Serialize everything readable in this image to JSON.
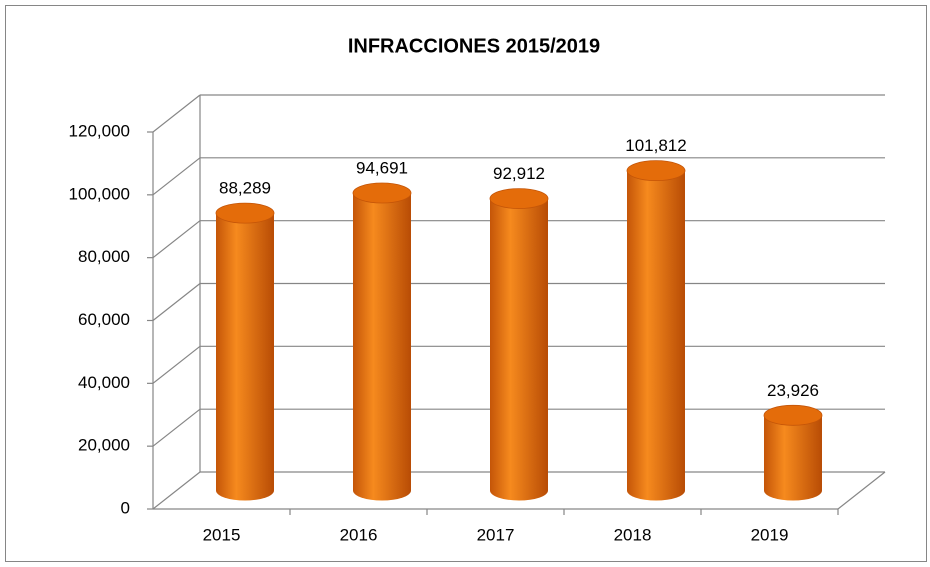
{
  "chart_data": {
    "type": "bar",
    "title": "INFRACCIONES 2015/2019",
    "categories": [
      "2015",
      "2016",
      "2017",
      "2018",
      "2019"
    ],
    "values": [
      88289,
      94691,
      92912,
      101812,
      23926
    ],
    "value_labels": [
      "88,289",
      "94,691",
      "92,912",
      "101,812",
      "23,926"
    ],
    "color": "#e46c0a",
    "ylim": [
      0,
      120000
    ],
    "yticks": [
      0,
      {
        "value": 20000,
        "label": "20,000"
      },
      {
        "value": 40000,
        "label": "40,000"
      },
      {
        "value": 60000,
        "label": "60,000"
      },
      {
        "value": 80000,
        "label": "80,000"
      },
      {
        "value": 100000,
        "label": "100,000"
      },
      {
        "value": 120000,
        "label": "120,000"
      }
    ],
    "grid": true
  }
}
